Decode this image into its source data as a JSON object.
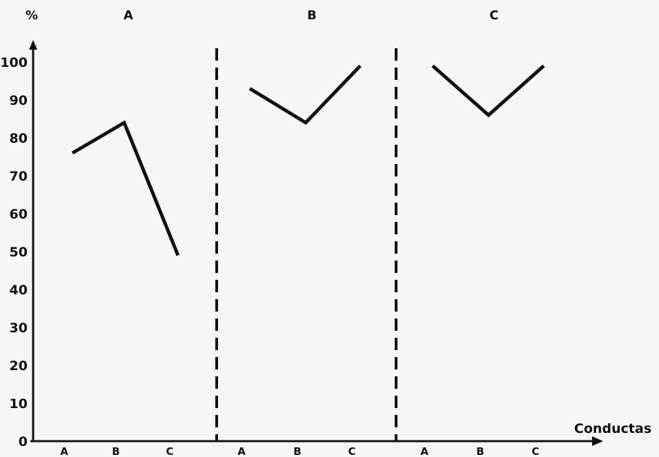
{
  "chart_data": {
    "type": "line",
    "y_unit_label": "%",
    "xlabel": "Conductas",
    "ylim": [
      0,
      100
    ],
    "yticks": [
      "0",
      "10",
      "20",
      "30",
      "40",
      "50",
      "60",
      "70",
      "80",
      "90",
      "100"
    ],
    "grid": false,
    "panels": [
      {
        "title": "A",
        "categories": [
          "A",
          "B",
          "C"
        ],
        "values": [
          76,
          84,
          49
        ]
      },
      {
        "title": "B",
        "categories": [
          "A",
          "B",
          "C"
        ],
        "values": [
          93,
          84,
          99
        ]
      },
      {
        "title": "C",
        "categories": [
          "A",
          "B",
          "C"
        ],
        "values": [
          99,
          86,
          99
        ]
      }
    ]
  }
}
